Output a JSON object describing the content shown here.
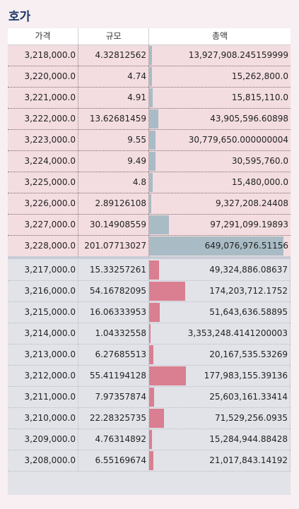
{
  "title": "호가",
  "headers": {
    "price": "가격",
    "size": "규모",
    "total": "총액"
  },
  "ask_rows": [
    {
      "price": "3,218,000.0",
      "size": "4.32812562",
      "total": "13,927,908.245159999"
    },
    {
      "price": "3,220,000.0",
      "size": "4.74",
      "total": "15,262,800.0"
    },
    {
      "price": "3,221,000.0",
      "size": "4.91",
      "total": "15,815,110.0"
    },
    {
      "price": "3,222,000.0",
      "size": "13.62681459",
      "total": "43,905,596.60898"
    },
    {
      "price": "3,223,000.0",
      "size": "9.55",
      "total": "30,779,650.000000004"
    },
    {
      "price": "3,224,000.0",
      "size": "9.49",
      "total": "30,595,760.0"
    },
    {
      "price": "3,225,000.0",
      "size": "4.8",
      "total": "15,480,000.0"
    },
    {
      "price": "3,226,000.0",
      "size": "2.89126108",
      "total": "9,327,208.24408"
    },
    {
      "price": "3,227,000.0",
      "size": "30.14908559",
      "total": "97,291,099.19893"
    },
    {
      "price": "3,228,000.0",
      "size": "201.07713027",
      "total": "649,076,976.51156"
    }
  ],
  "bid_rows": [
    {
      "price": "3,217,000.0",
      "size": "15.33257261",
      "total": "49,324,886.08637"
    },
    {
      "price": "3,216,000.0",
      "size": "54.16782095",
      "total": "174,203,712.1752"
    },
    {
      "price": "3,215,000.0",
      "size": "16.06333953",
      "total": "51,643,636.58895"
    },
    {
      "price": "3,214,000.0",
      "size": "1.04332558",
      "total": "3,353,248.4141200003"
    },
    {
      "price": "3,213,000.0",
      "size": "6.27685513",
      "total": "20,167,535.53269"
    },
    {
      "price": "3,212,000.0",
      "size": "55.41194128",
      "total": "177,983,155.39136"
    },
    {
      "price": "3,211,000.0",
      "size": "7.97357874",
      "total": "25,603,161.33414"
    },
    {
      "price": "3,210,000.0",
      "size": "22.28325735",
      "total": "71,529,256.0935"
    },
    {
      "price": "3,209,000.0",
      "size": "4.76314892",
      "total": "15,284,944.88428"
    },
    {
      "price": "3,208,000.0",
      "size": "6.55169674",
      "total": "21,017,843.14192"
    }
  ],
  "colors": {
    "ask_bar": "#a9bcc6",
    "bid_bar": "#d97f91",
    "ask_bg": "#f3dde1",
    "bid_bg": "#e2e3e8"
  }
}
